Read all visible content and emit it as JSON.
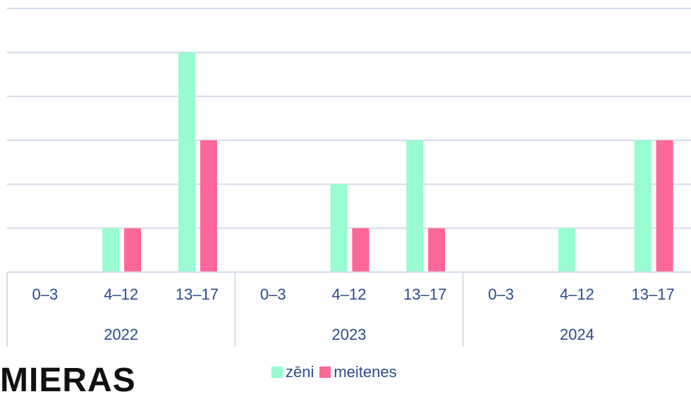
{
  "chart_data": {
    "type": "bar",
    "groups": [
      {
        "label": "2022",
        "categories": [
          "0–3",
          "4–12",
          "13–17"
        ]
      },
      {
        "label": "2023",
        "categories": [
          "0–3",
          "4–12",
          "13–17"
        ]
      },
      {
        "label": "2024",
        "categories": [
          "0–3",
          "4–12",
          "13–17"
        ]
      }
    ],
    "series": [
      {
        "name": "zēni",
        "color": "#98fcd0",
        "values": [
          0,
          1,
          5,
          0,
          2,
          3,
          0,
          1,
          3
        ]
      },
      {
        "name": "meitenes",
        "color": "#ff6699",
        "values": [
          0,
          1,
          3,
          0,
          1,
          1,
          0,
          0,
          3
        ]
      }
    ],
    "ylim": [
      0,
      6
    ],
    "grid": true,
    "legend_position": "bottom"
  },
  "legend": {
    "boys": "zēni",
    "girls": "meitenes",
    "boys_color": "#98fcd0",
    "girls_color": "#ff6699"
  },
  "logo": {
    "text": "MIERAS"
  }
}
